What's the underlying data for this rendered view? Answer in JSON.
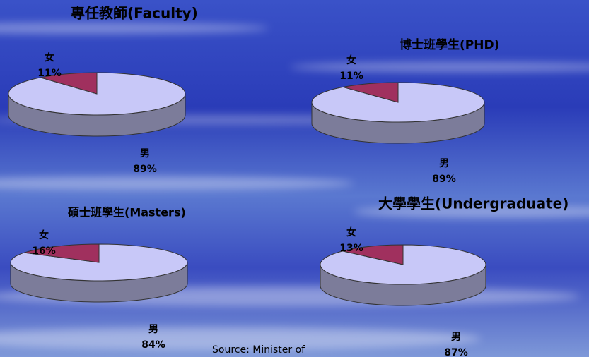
{
  "chart_data": [
    {
      "type": "pie",
      "title": "專任教師(Faculty)",
      "categories": [
        "男",
        "女"
      ],
      "values": [
        89,
        11
      ],
      "value_labels": [
        "89%",
        "11%"
      ],
      "colors": [
        "#c8c8f8",
        "#a0305e"
      ]
    },
    {
      "type": "pie",
      "title": "博士班學生(PHD)",
      "categories": [
        "男",
        "女"
      ],
      "values": [
        89,
        11
      ],
      "value_labels": [
        "89%",
        "11%"
      ],
      "colors": [
        "#c8c8f8",
        "#a0305e"
      ]
    },
    {
      "type": "pie",
      "title": "碩士班學生(Masters)",
      "categories": [
        "男",
        "女"
      ],
      "values": [
        84,
        16
      ],
      "value_labels": [
        "84%",
        "16%"
      ],
      "colors": [
        "#c8c8f8",
        "#a0305e"
      ]
    },
    {
      "type": "pie",
      "title": "大學學生(Undergraduate)",
      "categories": [
        "男",
        "女"
      ],
      "values": [
        87,
        13
      ],
      "value_labels": [
        "87%",
        "13%"
      ],
      "colors": [
        "#c8c8f8",
        "#a0305e"
      ]
    }
  ],
  "source": "Source: Minister of"
}
